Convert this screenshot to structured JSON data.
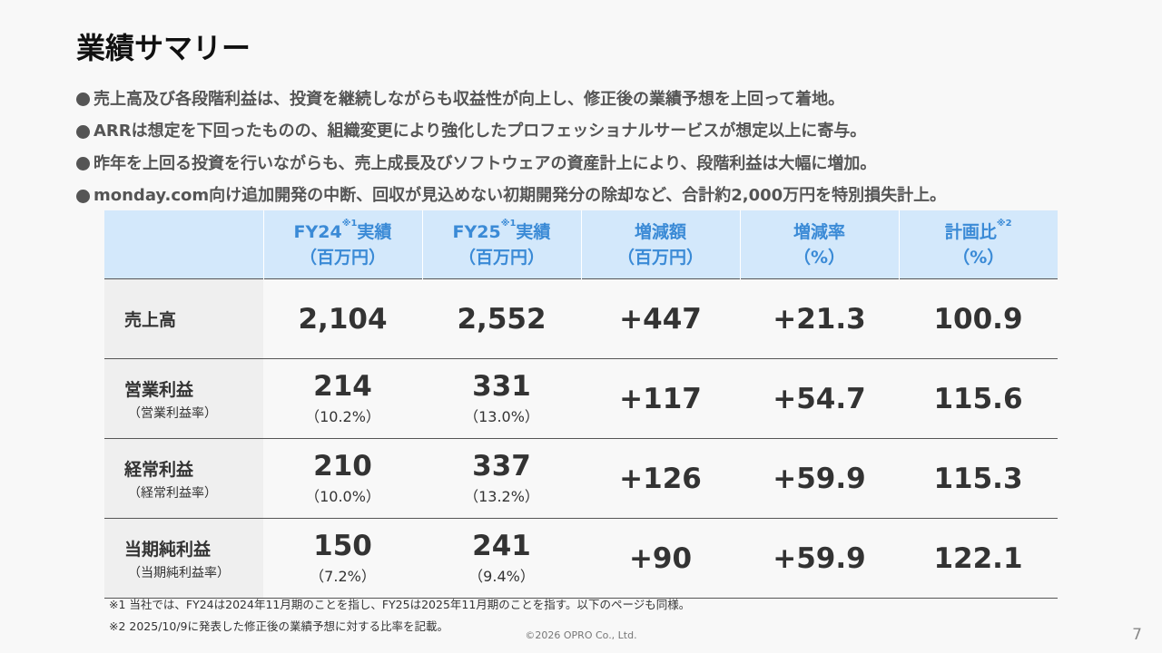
{
  "header": {
    "title": "業績サマリー"
  },
  "bullets": [
    "売上高及び各段階利益は、投資を継続しながらも収益性が向上し、修正後の業績予想を上回って着地。",
    "ARRは想定を下回ったものの、組織変更により強化したプロフェッショナルサービスが想定以上に寄与。",
    "昨年を上回る投資を行いながらも、売上成長及びソフトウェアの資産計上により、段階利益は大幅に増加。",
    "monday.com向け追加開発の中断、回収が見込めない初期開発分の除却など、合計約2,000万円を特別損失計上。"
  ],
  "table": {
    "columns": [
      {
        "text": "FY24",
        "note": "※1",
        "text2": "実績",
        "unit": "（百万円）"
      },
      {
        "text": "FY25",
        "note": "※1",
        "text2": "実績",
        "unit": "（百万円）"
      },
      {
        "text": "増減額",
        "unit": "（百万円）"
      },
      {
        "text": "増減率",
        "unit": "（%）"
      },
      {
        "text": "計画比",
        "note": "※2",
        "unit": "（%）"
      }
    ],
    "rows": [
      {
        "label": "売上高",
        "cells": [
          {
            "value": "2,104"
          },
          {
            "value": "2,552"
          },
          {
            "value": "+447"
          },
          {
            "value": "+21.3"
          },
          {
            "value": "100.9"
          }
        ]
      },
      {
        "label": "営業利益",
        "sublabel": "（営業利益率）",
        "cells": [
          {
            "value": "214",
            "sub": "（10.2%）"
          },
          {
            "value": "331",
            "sub": "（13.0%）"
          },
          {
            "value": "+117"
          },
          {
            "value": "+54.7"
          },
          {
            "value": "115.6"
          }
        ]
      },
      {
        "label": "経常利益",
        "sublabel": "（経常利益率）",
        "cells": [
          {
            "value": "210",
            "sub": "（10.0%）"
          },
          {
            "value": "337",
            "sub": "（13.2%）"
          },
          {
            "value": "+126"
          },
          {
            "value": "+59.9"
          },
          {
            "value": "115.3"
          }
        ]
      },
      {
        "label": "当期純利益",
        "sublabel": "（当期純利益率）",
        "cells": [
          {
            "value": "150",
            "sub": "（7.2%）"
          },
          {
            "value": "241",
            "sub": "（9.4%）"
          },
          {
            "value": "+90"
          },
          {
            "value": "+59.9"
          },
          {
            "value": "122.1"
          }
        ]
      }
    ]
  },
  "footnotes": [
    "※1 当社では、FY24は2024年11月期のことを指し、FY25は2025年11月期のことを指す。以下のページも同様。",
    "※2 2025/10/9に発表した修正後の業績予想に対する比率を記載。"
  ],
  "footer": {
    "copyright": "©2026 OPRO Co., Ltd.",
    "page": "7"
  }
}
